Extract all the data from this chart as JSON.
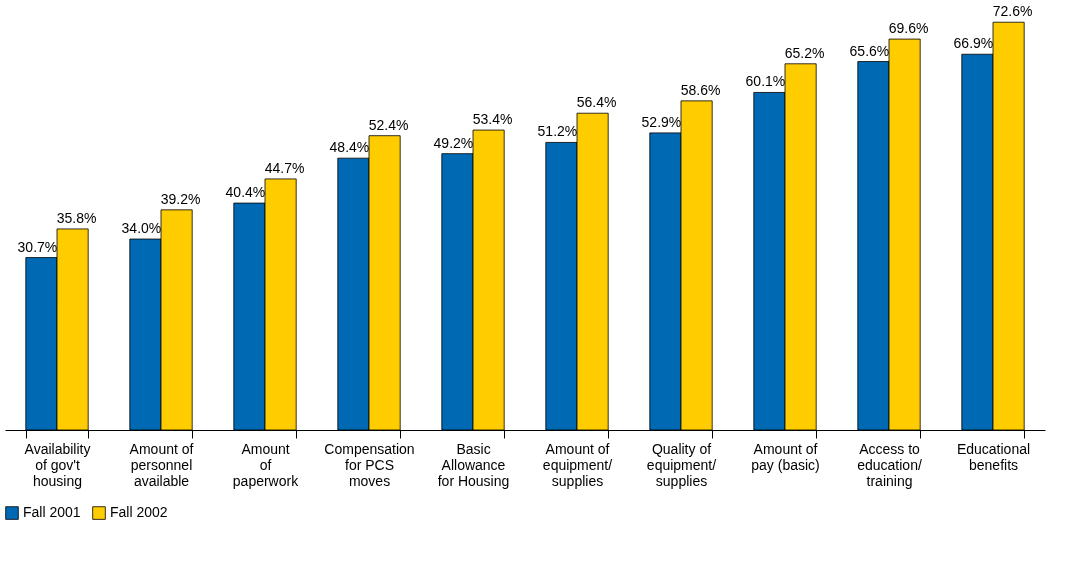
{
  "chart_data": {
    "type": "bar",
    "categories": [
      "Availability\nof gov't\nhousing",
      "Amount of\npersonnel\navailable",
      "Amount\nof\npaperwork",
      "Compensation\nfor PCS\nmoves",
      "Basic\nAllowance\nfor Housing",
      "Amount of\nequipment/\nsupplies",
      "Quality of\nequipment/\nsupplies",
      "Amount of\npay (basic)",
      "Access to\neducation/\ntraining",
      "Educational\nbenefits"
    ],
    "series": [
      {
        "name": "Fall 2001",
        "color": "#0069b4",
        "values": [
          30.7,
          34.0,
          40.4,
          48.4,
          49.2,
          51.2,
          52.9,
          60.1,
          65.6,
          66.9
        ],
        "value_labels": [
          "30.7%",
          "34.0%",
          "40.4%",
          "48.4%",
          "49.2%",
          "51.2%",
          "52.9%",
          "60.1%",
          "65.6%",
          "66.9%"
        ]
      },
      {
        "name": "Fall 2002",
        "color": "#ffcc00",
        "values": [
          35.8,
          39.2,
          44.7,
          52.4,
          53.4,
          56.4,
          58.6,
          65.2,
          69.6,
          72.6
        ],
        "value_labels": [
          "35.8%",
          "39.2%",
          "44.7%",
          "52.4%",
          "53.4%",
          "56.4%",
          "58.6%",
          "65.2%",
          "69.6%",
          "72.6%"
        ]
      }
    ],
    "legend": "bottom",
    "grid": false
  }
}
